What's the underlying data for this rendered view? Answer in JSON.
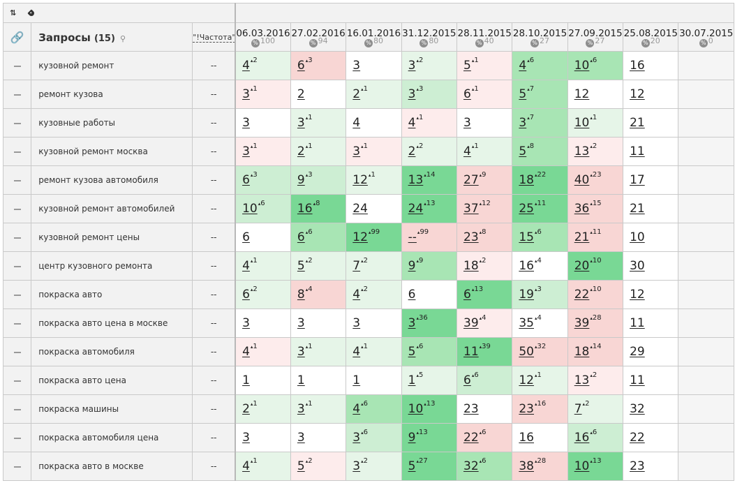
{
  "toolbar": {
    "sort_icon": "⇅",
    "tag_icon": "tag-icon"
  },
  "header": {
    "link_icon": "🔗",
    "queries_label": "Запросы",
    "queries_count": "(15)",
    "search_icon": "⚲",
    "frequency_label": "\"!Частота\""
  },
  "dates": [
    {
      "date": "06.03.2016",
      "pct": "100"
    },
    {
      "date": "27.02.2016",
      "pct": "94"
    },
    {
      "date": "16.01.2016",
      "pct": "80"
    },
    {
      "date": "31.12.2015",
      "pct": "80"
    },
    {
      "date": "28.11.2015",
      "pct": "40"
    },
    {
      "date": "28.10.2015",
      "pct": "27"
    },
    {
      "date": "27.09.2015",
      "pct": "27"
    },
    {
      "date": "25.08.2015",
      "pct": "20"
    },
    {
      "date": "30.07.2015",
      "pct": "0"
    }
  ],
  "colors": {
    "g1": "#e6f5e8",
    "g2": "#cdeed3",
    "g3": "#a8e5b4",
    "g4": "#79d895",
    "r1": "#fdecec",
    "r2": "#f8d6d4",
    "w": "#ffffff",
    "e": "#f5f5f5"
  },
  "rows": [
    {
      "query": "кузовной ремонт",
      "freq": "--",
      "cells": [
        [
          "4",
          "2",
          "g1"
        ],
        [
          "6",
          "3",
          "r2"
        ],
        [
          "3",
          "",
          "w"
        ],
        [
          "3",
          "2",
          "g1"
        ],
        [
          "5",
          "1",
          "r1"
        ],
        [
          "4",
          "6",
          "g3"
        ],
        [
          "10",
          "6",
          "g3"
        ],
        [
          "16",
          "",
          "w"
        ],
        [
          "",
          "",
          "e"
        ]
      ]
    },
    {
      "query": "ремонт кузова",
      "freq": "--",
      "cells": [
        [
          "3",
          "1",
          "r1"
        ],
        [
          "2",
          "",
          "w"
        ],
        [
          "2",
          "1",
          "g1"
        ],
        [
          "3",
          "3",
          "g2"
        ],
        [
          "6",
          "1",
          "r1"
        ],
        [
          "5",
          "7",
          "g3"
        ],
        [
          "12",
          "",
          "w"
        ],
        [
          "12",
          "",
          "w"
        ],
        [
          "",
          "",
          "e"
        ]
      ]
    },
    {
      "query": "кузовные работы",
      "freq": "--",
      "cells": [
        [
          "3",
          "",
          "w"
        ],
        [
          "3",
          "1",
          "g1"
        ],
        [
          "4",
          "",
          "w"
        ],
        [
          "4",
          "1",
          "r1"
        ],
        [
          "3",
          "",
          "w"
        ],
        [
          "3",
          "7",
          "g3"
        ],
        [
          "10",
          "1",
          "g1"
        ],
        [
          "21",
          "",
          "w"
        ],
        [
          "",
          "",
          "e"
        ]
      ]
    },
    {
      "query": "кузовной ремонт москва",
      "freq": "--",
      "cells": [
        [
          "3",
          "1",
          "r1"
        ],
        [
          "2",
          "1",
          "g1"
        ],
        [
          "3",
          "1",
          "r1"
        ],
        [
          "2",
          "2",
          "g1"
        ],
        [
          "4",
          "1",
          "g1"
        ],
        [
          "5",
          "8",
          "g3"
        ],
        [
          "13",
          "2",
          "r1"
        ],
        [
          "11",
          "",
          "w"
        ],
        [
          "",
          "",
          "e"
        ]
      ]
    },
    {
      "query": "ремонт кузова автомобиля",
      "freq": "--",
      "cells": [
        [
          "6",
          "3",
          "g2"
        ],
        [
          "9",
          "3",
          "g2"
        ],
        [
          "12",
          "1",
          "g1"
        ],
        [
          "13",
          "14",
          "g4"
        ],
        [
          "27",
          "9",
          "r2"
        ],
        [
          "18",
          "22",
          "g4"
        ],
        [
          "40",
          "23",
          "r2"
        ],
        [
          "17",
          "",
          "w"
        ],
        [
          "",
          "",
          "e"
        ]
      ]
    },
    {
      "query": "кузовной ремонт автомобилей",
      "freq": "--",
      "cells": [
        [
          "10",
          "6",
          "g2"
        ],
        [
          "16",
          "8",
          "g4"
        ],
        [
          "24",
          "",
          "w"
        ],
        [
          "24",
          "13",
          "g4"
        ],
        [
          "37",
          "12",
          "r2"
        ],
        [
          "25",
          "11",
          "g4"
        ],
        [
          "36",
          "15",
          "r2"
        ],
        [
          "21",
          "",
          "w"
        ],
        [
          "",
          "",
          "e"
        ]
      ]
    },
    {
      "query": "кузовной ремонт цены",
      "freq": "--",
      "cells": [
        [
          "6",
          "",
          "w"
        ],
        [
          "6",
          "6",
          "g3"
        ],
        [
          "12",
          "99",
          "g4"
        ],
        [
          "--",
          "99",
          "r2"
        ],
        [
          "23",
          "8",
          "r2"
        ],
        [
          "15",
          "6",
          "g3"
        ],
        [
          "21",
          "11",
          "r2"
        ],
        [
          "10",
          "",
          "w"
        ],
        [
          "",
          "",
          "e"
        ]
      ]
    },
    {
      "query": "центр кузовного ремонта",
      "freq": "--",
      "cells": [
        [
          "4",
          "1",
          "g1"
        ],
        [
          "5",
          "2",
          "g1"
        ],
        [
          "7",
          "2",
          "g1"
        ],
        [
          "9",
          "9",
          "g3"
        ],
        [
          "18",
          "2",
          "r1"
        ],
        [
          "16",
          "4",
          "w"
        ],
        [
          "20",
          "10",
          "g4"
        ],
        [
          "30",
          "",
          "w"
        ],
        [
          "",
          "",
          "e"
        ]
      ]
    },
    {
      "query": "покраска авто",
      "freq": "--",
      "cells": [
        [
          "6",
          "2",
          "g1"
        ],
        [
          "8",
          "4",
          "r2"
        ],
        [
          "4",
          "2",
          "g1"
        ],
        [
          "6",
          "",
          "w"
        ],
        [
          "6",
          "13",
          "g4"
        ],
        [
          "19",
          "3",
          "g2"
        ],
        [
          "22",
          "10",
          "r2"
        ],
        [
          "12",
          "",
          "w"
        ],
        [
          "",
          "",
          "e"
        ]
      ]
    },
    {
      "query": "покраска авто цена в москве",
      "freq": "--",
      "cells": [
        [
          "3",
          "",
          "w"
        ],
        [
          "3",
          "",
          "w"
        ],
        [
          "3",
          "",
          "w"
        ],
        [
          "3",
          "36",
          "g4"
        ],
        [
          "39",
          "4",
          "r1"
        ],
        [
          "35",
          "4",
          "w"
        ],
        [
          "39",
          "28",
          "r2"
        ],
        [
          "11",
          "",
          "w"
        ],
        [
          "",
          "",
          "e"
        ]
      ]
    },
    {
      "query": "покраска автомобиля",
      "freq": "--",
      "cells": [
        [
          "4",
          "1",
          "r1"
        ],
        [
          "3",
          "1",
          "g1"
        ],
        [
          "4",
          "1",
          "g1"
        ],
        [
          "5",
          "6",
          "g3"
        ],
        [
          "11",
          "39",
          "g4"
        ],
        [
          "50",
          "32",
          "r2"
        ],
        [
          "18",
          "14",
          "r2"
        ],
        [
          "29",
          "",
          "w"
        ],
        [
          "",
          "",
          "e"
        ]
      ]
    },
    {
      "query": "покраска авто цена",
      "freq": "--",
      "cells": [
        [
          "1",
          "",
          "w"
        ],
        [
          "1",
          "",
          "w"
        ],
        [
          "1",
          "",
          "w"
        ],
        [
          "1",
          "5",
          "g1"
        ],
        [
          "6",
          "6",
          "g2"
        ],
        [
          "12",
          "1",
          "g1"
        ],
        [
          "13",
          "2",
          "r1"
        ],
        [
          "11",
          "",
          "w"
        ],
        [
          "",
          "",
          "e"
        ]
      ]
    },
    {
      "query": "покраска машины",
      "freq": "--",
      "cells": [
        [
          "2",
          "1",
          "g1"
        ],
        [
          "3",
          "1",
          "g1"
        ],
        [
          "4",
          "6",
          "g3"
        ],
        [
          "10",
          "13",
          "g4"
        ],
        [
          "23",
          "",
          "w"
        ],
        [
          "23",
          "16",
          "r2"
        ],
        [
          "7",
          "2",
          "g1"
        ],
        [
          "32",
          "",
          "w"
        ],
        [
          "",
          "",
          "e"
        ]
      ]
    },
    {
      "query": "покраска автомобиля цена",
      "freq": "--",
      "cells": [
        [
          "3",
          "",
          "w"
        ],
        [
          "3",
          "",
          "w"
        ],
        [
          "3",
          "6",
          "g2"
        ],
        [
          "9",
          "13",
          "g4"
        ],
        [
          "22",
          "6",
          "r2"
        ],
        [
          "16",
          "",
          "w"
        ],
        [
          "16",
          "6",
          "g2"
        ],
        [
          "22",
          "",
          "w"
        ],
        [
          "",
          "",
          "e"
        ]
      ]
    },
    {
      "query": "покраска авто в москве",
      "freq": "--",
      "cells": [
        [
          "4",
          "1",
          "g1"
        ],
        [
          "5",
          "2",
          "r1"
        ],
        [
          "3",
          "2",
          "g1"
        ],
        [
          "5",
          "27",
          "g4"
        ],
        [
          "32",
          "6",
          "g3"
        ],
        [
          "38",
          "28",
          "r2"
        ],
        [
          "10",
          "13",
          "g4"
        ],
        [
          "23",
          "",
          "w"
        ],
        [
          "",
          "",
          "e"
        ]
      ]
    }
  ]
}
